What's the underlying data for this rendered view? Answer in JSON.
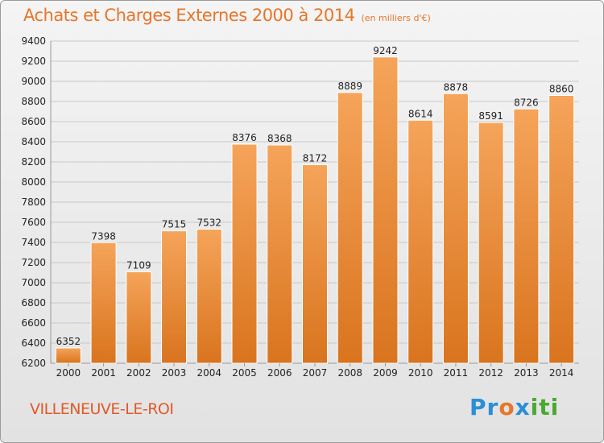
{
  "title": "Achats et Charges Externes 2000 à 2014",
  "unit": "(en milliers d'€)",
  "commune": "VILLENEUVE-LE-ROI",
  "logo": {
    "text": "Proxiti",
    "letters": [
      "P",
      "r",
      "o",
      "x",
      "i",
      "t",
      "i"
    ],
    "colors": [
      "#2a8fd6",
      "#2a8fd6",
      "#e8762a",
      "#2a8fd6",
      "#4aa832",
      "#4aa832",
      "#4aa832"
    ]
  },
  "colors": {
    "bar_top": "#f5a45a",
    "bar_bottom": "#d9741e",
    "title": "#e8762a",
    "commune": "#e05a28"
  },
  "chart_data": {
    "type": "bar",
    "categories": [
      "2000",
      "2001",
      "2002",
      "2003",
      "2004",
      "2005",
      "2006",
      "2007",
      "2008",
      "2009",
      "2010",
      "2011",
      "2012",
      "2013",
      "2014"
    ],
    "values": [
      6352,
      7398,
      7109,
      7515,
      7532,
      8376,
      8368,
      8172,
      8889,
      9242,
      8614,
      8878,
      8591,
      8726,
      8860
    ],
    "yticks": [
      6200,
      6400,
      6600,
      6800,
      7000,
      7200,
      7400,
      7600,
      7800,
      8000,
      8200,
      8400,
      8600,
      8800,
      9000,
      9200,
      9400
    ],
    "ylim": [
      6200,
      9400
    ],
    "grid": true,
    "title": "Achats et Charges Externes 2000 à 2014",
    "xlabel": "",
    "ylabel": ""
  }
}
